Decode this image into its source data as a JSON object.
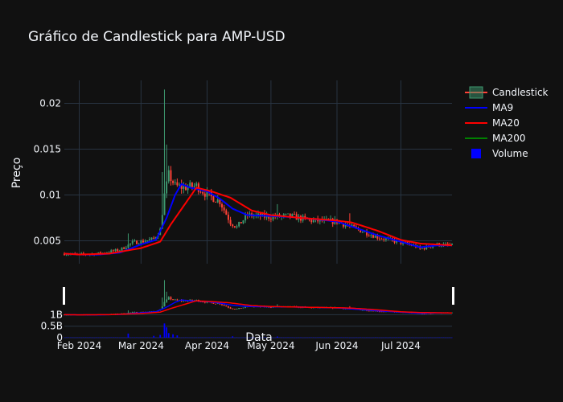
{
  "chart_data": {
    "type": "candlestick",
    "title": "Gráfico de Candlestick para AMP-USD",
    "ylabel": "Preço",
    "xlabel": "Data",
    "x_ticks": [
      "2024-02-01",
      "2024-03-01",
      "2024-04-01",
      "2024-05-01",
      "2024-06-01",
      "2024-07-01"
    ],
    "x_tick_labels": [
      "Feb 2024",
      "Mar 2024",
      "Apr 2024",
      "May 2024",
      "Jun 2024",
      "Jul 2024"
    ],
    "x_range": [
      "2024-01-25",
      "2024-07-25"
    ],
    "price_axis": {
      "ylim": [
        0.0025,
        0.0225
      ],
      "ticks": [
        0.005,
        0.01,
        0.015,
        0.02
      ],
      "tick_labels": [
        "0.005",
        "0.01",
        "0.015",
        "0.02"
      ]
    },
    "volume_axis": {
      "ylim": [
        0,
        1.4
      ],
      "ticks": [
        0,
        0.5,
        1
      ],
      "tick_labels": [
        "0",
        "0.5B",
        "1B"
      ],
      "unit": "billions"
    },
    "grid": true,
    "legend_position": "top-right",
    "legend": [
      {
        "name": "Candlestick",
        "kind": "candle",
        "color": "#3d9970"
      },
      {
        "name": "MA9",
        "kind": "line",
        "color": "#0000ff"
      },
      {
        "name": "MA20",
        "kind": "line",
        "color": "#ff0000"
      },
      {
        "name": "MA200",
        "kind": "line",
        "color": "#008000"
      },
      {
        "name": "Volume",
        "kind": "square",
        "color": "#0000ff"
      }
    ],
    "colors": {
      "increasing": "#3d9970",
      "decreasing": "#ff4136",
      "ma9": "#0000ff",
      "ma20": "#ff0000",
      "volume": "#0000ff"
    },
    "price_keypoints": [
      [
        "2024-01-25",
        0.0036
      ],
      [
        "2024-02-01",
        0.0035
      ],
      [
        "2024-02-10",
        0.0036
      ],
      [
        "2024-02-20",
        0.004
      ],
      [
        "2024-02-26",
        0.0048
      ],
      [
        "2024-03-01",
        0.0049
      ],
      [
        "2024-03-07",
        0.0052
      ],
      [
        "2024-03-10",
        0.0062
      ],
      [
        "2024-03-12",
        0.01
      ],
      [
        "2024-03-14",
        0.0122
      ],
      [
        "2024-03-17",
        0.011
      ],
      [
        "2024-03-21",
        0.0108
      ],
      [
        "2024-03-27",
        0.011
      ],
      [
        "2024-04-01",
        0.01
      ],
      [
        "2024-04-07",
        0.0093
      ],
      [
        "2024-04-12",
        0.007
      ],
      [
        "2024-04-15",
        0.0065
      ],
      [
        "2024-04-20",
        0.0078
      ],
      [
        "2024-05-01",
        0.0076
      ],
      [
        "2024-05-10",
        0.0077
      ],
      [
        "2024-05-20",
        0.0072
      ],
      [
        "2024-06-01",
        0.0071
      ],
      [
        "2024-06-10",
        0.0063
      ],
      [
        "2024-06-20",
        0.0054
      ],
      [
        "2024-07-01",
        0.0048
      ],
      [
        "2024-07-08",
        0.0044
      ],
      [
        "2024-07-10",
        0.0041
      ],
      [
        "2024-07-18",
        0.0046
      ],
      [
        "2024-07-25",
        0.0045
      ]
    ],
    "spikes": [
      [
        "2024-03-12",
        0.0215
      ],
      [
        "2024-03-13",
        0.0155
      ],
      [
        "2024-03-11",
        0.0125
      ],
      [
        "2024-05-04",
        0.009
      ],
      [
        "2024-02-24",
        0.0058
      ],
      [
        "2024-06-07",
        0.008
      ]
    ],
    "ma9": [
      [
        "2024-01-25",
        0.0036
      ],
      [
        "2024-02-01",
        0.0035
      ],
      [
        "2024-02-10",
        0.0035
      ],
      [
        "2024-02-20",
        0.0037
      ],
      [
        "2024-03-01",
        0.0046
      ],
      [
        "2024-03-08",
        0.0051
      ],
      [
        "2024-03-13",
        0.0075
      ],
      [
        "2024-03-17",
        0.01
      ],
      [
        "2024-03-20",
        0.0112
      ],
      [
        "2024-03-24",
        0.0108
      ],
      [
        "2024-04-01",
        0.0104
      ],
      [
        "2024-04-07",
        0.0096
      ],
      [
        "2024-04-13",
        0.0085
      ],
      [
        "2024-04-20",
        0.0078
      ],
      [
        "2024-05-01",
        0.0077
      ],
      [
        "2024-05-10",
        0.0076
      ],
      [
        "2024-05-20",
        0.0074
      ],
      [
        "2024-06-01",
        0.0071
      ],
      [
        "2024-06-10",
        0.0064
      ],
      [
        "2024-06-20",
        0.0056
      ],
      [
        "2024-07-01",
        0.0049
      ],
      [
        "2024-07-10",
        0.0043
      ],
      [
        "2024-07-18",
        0.0045
      ],
      [
        "2024-07-25",
        0.0045
      ]
    ],
    "ma20": [
      [
        "2024-01-25",
        0.0036
      ],
      [
        "2024-02-01",
        0.0035
      ],
      [
        "2024-02-15",
        0.0036
      ],
      [
        "2024-03-01",
        0.0042
      ],
      [
        "2024-03-10",
        0.0049
      ],
      [
        "2024-03-15",
        0.0068
      ],
      [
        "2024-03-21",
        0.0088
      ],
      [
        "2024-03-27",
        0.0108
      ],
      [
        "2024-04-03",
        0.0104
      ],
      [
        "2024-04-12",
        0.0097
      ],
      [
        "2024-04-22",
        0.0083
      ],
      [
        "2024-05-01",
        0.0078
      ],
      [
        "2024-05-15",
        0.0075
      ],
      [
        "2024-06-01",
        0.0072
      ],
      [
        "2024-06-08",
        0.007
      ],
      [
        "2024-06-20",
        0.0061
      ],
      [
        "2024-07-01",
        0.0051
      ],
      [
        "2024-07-10",
        0.0047
      ],
      [
        "2024-07-25",
        0.0045
      ]
    ],
    "volume_keypoints": [
      [
        "2024-03-07",
        0.08
      ],
      [
        "2024-03-10",
        0.12
      ],
      [
        "2024-03-12",
        0.62
      ],
      [
        "2024-03-13",
        0.45
      ],
      [
        "2024-03-14",
        0.2
      ],
      [
        "2024-03-16",
        0.15
      ],
      [
        "2024-03-18",
        0.1
      ],
      [
        "2024-02-24",
        0.18
      ],
      [
        "2024-04-13",
        0.06
      ],
      [
        "2024-05-04",
        0.05
      ]
    ]
  }
}
